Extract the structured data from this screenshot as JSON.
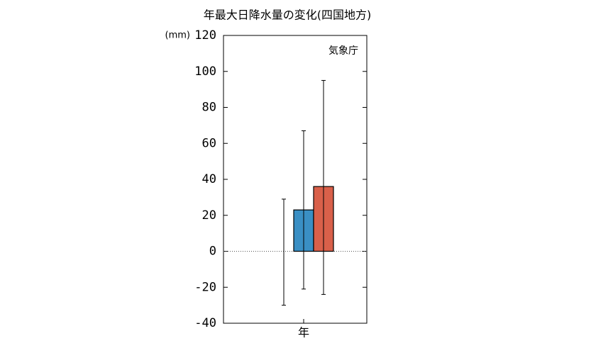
{
  "chart_data": {
    "type": "bar",
    "title": "年最大日降水量の変化(四国地方)",
    "y_axis_label": "(mm)",
    "annotation": "気象庁",
    "categories": [
      "年"
    ],
    "series": [
      {
        "color": "#999999",
        "values": [
          0
        ],
        "lower": [
          -30
        ],
        "upper": [
          29
        ]
      },
      {
        "color": "#3a8fc4",
        "values": [
          23
        ],
        "lower": [
          -21
        ],
        "upper": [
          67
        ]
      },
      {
        "color": "#d9604a",
        "values": [
          36
        ],
        "lower": [
          -24
        ],
        "upper": [
          95
        ]
      }
    ],
    "ylim": [
      -40,
      120
    ],
    "yticks": [
      -40,
      -20,
      0,
      20,
      40,
      60,
      80,
      100,
      120
    ],
    "hlines": [
      0
    ]
  }
}
